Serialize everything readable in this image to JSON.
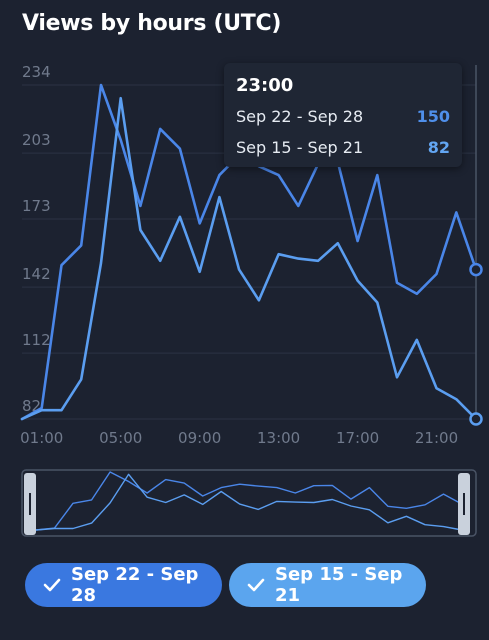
{
  "header": {
    "title": "Views by hours (UTC)"
  },
  "chart_data": {
    "type": "line",
    "title": "Views by hours (UTC)",
    "xlabel": "",
    "ylabel": "",
    "x": [
      "00:00",
      "01:00",
      "02:00",
      "03:00",
      "04:00",
      "05:00",
      "06:00",
      "07:00",
      "08:00",
      "09:00",
      "10:00",
      "11:00",
      "12:00",
      "13:00",
      "14:00",
      "15:00",
      "16:00",
      "17:00",
      "18:00",
      "19:00",
      "20:00",
      "21:00",
      "22:00",
      "23:00"
    ],
    "x_tick_labels": [
      "01:00",
      "05:00",
      "09:00",
      "13:00",
      "17:00",
      "21:00"
    ],
    "y_tick_labels": [
      "234",
      "203",
      "173",
      "142",
      "112",
      "82"
    ],
    "ylim": [
      82,
      234
    ],
    "grid": true,
    "series": [
      {
        "name": "Sep 22 - Sep 28",
        "color": "#4a86e8",
        "values": [
          82,
          87,
          152,
          161,
          234,
          209,
          179,
          214,
          205,
          171,
          193,
          202,
          197,
          193,
          179,
          198,
          199,
          163,
          193,
          144,
          139,
          148,
          176,
          150
        ]
      },
      {
        "name": "Sep 15 - Sep 21",
        "color": "#5b9ef0",
        "values": [
          82,
          86,
          86,
          100,
          153,
          228,
          168,
          154,
          174,
          149,
          183,
          150,
          136,
          157,
          155,
          154,
          162,
          145,
          135,
          101,
          118,
          96,
          91,
          82
        ]
      }
    ]
  },
  "tooltip": {
    "time": "23:00",
    "rows": [
      {
        "label": "Sep 22 - Sep 28",
        "value": "150",
        "color": "#4f8fea"
      },
      {
        "label": "Sep 15 - Sep 21",
        "value": "82",
        "color": "#63a6f2"
      }
    ]
  },
  "legend": {
    "items": [
      {
        "label": "Sep 22 - Sep 28",
        "color": "#3a78e0"
      },
      {
        "label": "Sep 15 - Sep 21",
        "color": "#5ba5ee"
      }
    ]
  }
}
